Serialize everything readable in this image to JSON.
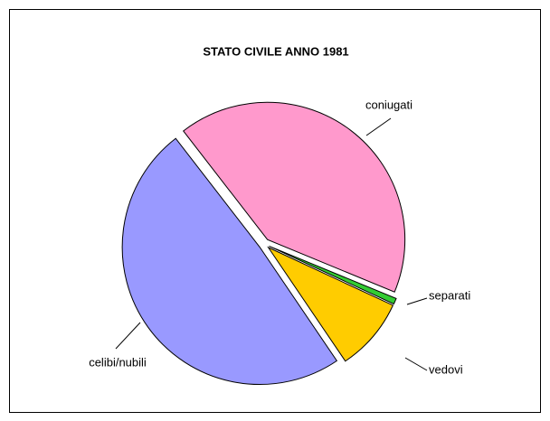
{
  "chart_data": {
    "type": "pie",
    "title": "STATO CIVILE ANNO 1981",
    "categories": [
      "coniugati",
      "separati",
      "vedovi",
      "celibi/nubili"
    ],
    "values": [
      41.7,
      0.7,
      8.6,
      49
    ],
    "colors": [
      "#ff99cc",
      "#33cc33",
      "#ffcc00",
      "#9999ff"
    ]
  }
}
